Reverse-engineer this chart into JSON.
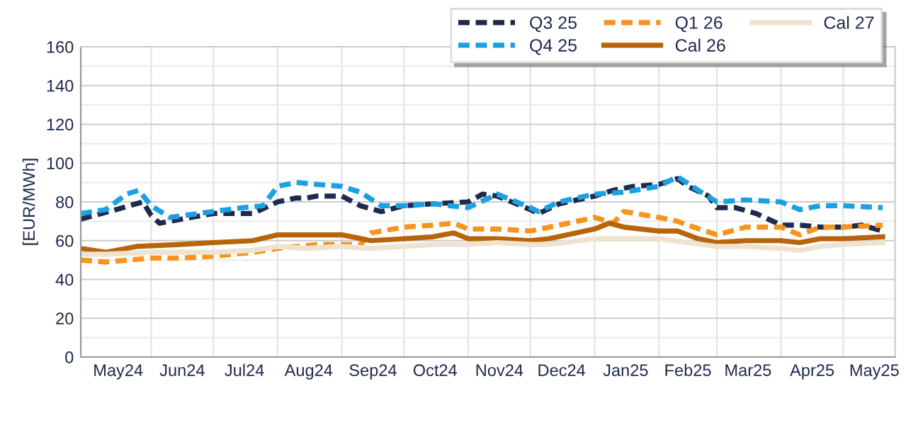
{
  "chart_data": {
    "type": "line",
    "ylabel": "[EUR/MWh]",
    "ylim": [
      0,
      160
    ],
    "yticks": [
      0,
      {
        "value": 10,
        "label": null
      },
      20,
      {
        "value": 30,
        "label": null
      },
      40,
      {
        "value": 50,
        "label": null
      },
      60,
      {
        "value": 70,
        "label": null
      },
      80,
      {
        "value": 90,
        "label": null
      },
      100,
      {
        "value": 110,
        "label": null
      },
      120,
      {
        "value": 130,
        "label": null
      },
      140,
      {
        "value": 150,
        "label": null
      },
      160
    ],
    "xlim": [
      "2024-04-28",
      "2025-05-26"
    ],
    "xticks": [
      {
        "value": "2024-05-16",
        "label": "May24"
      },
      {
        "value": "2024-06-01",
        "label": null
      },
      {
        "value": "2024-06-16",
        "label": "Jun24"
      },
      {
        "value": "2024-07-01",
        "label": null
      },
      {
        "value": "2024-07-16",
        "label": "Jul24"
      },
      {
        "value": "2024-08-01",
        "label": null
      },
      {
        "value": "2024-08-16",
        "label": "Aug24"
      },
      {
        "value": "2024-09-01",
        "label": null
      },
      {
        "value": "2024-09-16",
        "label": "Sep24"
      },
      {
        "value": "2024-10-01",
        "label": null
      },
      {
        "value": "2024-10-16",
        "label": "Oct24"
      },
      {
        "value": "2024-11-01",
        "label": null
      },
      {
        "value": "2024-11-16",
        "label": "Nov24"
      },
      {
        "value": "2024-12-01",
        "label": null
      },
      {
        "value": "2024-12-16",
        "label": "Dec24"
      },
      {
        "value": "2025-01-01",
        "label": null
      },
      {
        "value": "2025-01-16",
        "label": "Jan25"
      },
      {
        "value": "2025-02-01",
        "label": null
      },
      {
        "value": "2025-02-15",
        "label": "Feb25"
      },
      {
        "value": "2025-03-01",
        "label": null
      },
      {
        "value": "2025-03-16",
        "label": "Mar25"
      },
      {
        "value": "2025-04-01",
        "label": null
      },
      {
        "value": "2025-04-16",
        "label": "Apr25"
      },
      {
        "value": "2025-05-01",
        "label": null
      },
      {
        "value": "2025-05-16",
        "label": "May25"
      }
    ],
    "grid": true,
    "legend": "top right",
    "series": [
      {
        "name": "Q3 25",
        "color": "#1f2a4d",
        "line_style": "dashed",
        "x": [
          "2024-04-28",
          "2024-05-01",
          "2024-05-15",
          "2024-05-28",
          "2024-06-01",
          "2024-06-05",
          "2024-06-10",
          "2024-06-15",
          "2024-07-01",
          "2024-07-15",
          "2024-07-20",
          "2024-08-01",
          "2024-08-10",
          "2024-08-15",
          "2024-08-20",
          "2024-09-01",
          "2024-09-10",
          "2024-09-20",
          "2024-10-01",
          "2024-10-15",
          "2024-11-01",
          "2024-11-08",
          "2024-11-15",
          "2024-12-01",
          "2024-12-05",
          "2024-12-15",
          "2025-01-01",
          "2025-01-10",
          "2025-01-20",
          "2025-02-01",
          "2025-02-10",
          "2025-02-15",
          "2025-02-25",
          "2025-03-01",
          "2025-03-10",
          "2025-03-20",
          "2025-04-01",
          "2025-04-10",
          "2025-04-20",
          "2025-05-01",
          "2025-05-10",
          "2025-05-20"
        ],
        "values": [
          71,
          72,
          76,
          80,
          73,
          69,
          70,
          71,
          74,
          74,
          74,
          80,
          82,
          82,
          83,
          83,
          78,
          75,
          78,
          79,
          80,
          84,
          83,
          76,
          74,
          79,
          83,
          86,
          88,
          89,
          92,
          88,
          83,
          77,
          77,
          74,
          68,
          68,
          67,
          67,
          68,
          65
        ]
      },
      {
        "name": "Q4 25",
        "color": "#1ba1e2",
        "line_style": "dashed",
        "x": [
          "2024-04-28",
          "2024-05-10",
          "2024-05-20",
          "2024-05-26",
          "2024-06-01",
          "2024-06-10",
          "2024-07-01",
          "2024-07-15",
          "2024-07-25",
          "2024-08-01",
          "2024-08-10",
          "2024-08-20",
          "2024-09-01",
          "2024-09-10",
          "2024-09-20",
          "2024-10-01",
          "2024-10-15",
          "2024-11-01",
          "2024-11-15",
          "2024-12-01",
          "2024-12-05",
          "2024-12-15",
          "2025-01-01",
          "2025-01-15",
          "2025-02-01",
          "2025-02-10",
          "2025-02-20",
          "2025-03-01",
          "2025-03-15",
          "2025-04-01",
          "2025-04-10",
          "2025-04-20",
          "2025-05-01",
          "2025-05-20"
        ],
        "values": [
          74,
          76,
          84,
          86,
          78,
          72,
          75,
          77,
          78,
          88,
          90,
          89,
          88,
          85,
          78,
          78,
          79,
          77,
          84,
          77,
          75,
          80,
          84,
          85,
          88,
          93,
          86,
          80,
          81,
          80,
          76,
          78,
          78,
          77
        ]
      },
      {
        "name": "Q1 26",
        "color": "#f7941d",
        "line_style": "dashed",
        "x": [
          "2024-04-28",
          "2024-05-10",
          "2024-06-01",
          "2024-06-15",
          "2024-07-01",
          "2024-07-20",
          "2024-08-01",
          "2024-08-20",
          "2024-09-01",
          "2024-09-10",
          "2024-09-15",
          "2024-10-01",
          "2024-10-15",
          "2024-10-25",
          "2024-11-01",
          "2024-11-15",
          "2024-12-01",
          "2024-12-15",
          "2025-01-01",
          "2025-01-10",
          "2025-01-15",
          "2025-02-01",
          "2025-02-10",
          "2025-02-15",
          "2025-03-01",
          "2025-03-15",
          "2025-04-01",
          "2025-04-10",
          "2025-04-20",
          "2025-05-01",
          "2025-05-20"
        ],
        "values": [
          50,
          49,
          51,
          51,
          52,
          54,
          56,
          58,
          58,
          58,
          64,
          67,
          68,
          69,
          66,
          66,
          65,
          68,
          72,
          69,
          75,
          72,
          70,
          68,
          63,
          67,
          67,
          63,
          67,
          67,
          68
        ]
      },
      {
        "name": "Cal 26",
        "color": "#b8650a",
        "line_style": "solid",
        "x": [
          "2024-04-28",
          "2024-05-10",
          "2024-05-25",
          "2024-06-15",
          "2024-07-01",
          "2024-07-20",
          "2024-08-01",
          "2024-08-15",
          "2024-09-01",
          "2024-09-15",
          "2024-10-01",
          "2024-10-15",
          "2024-10-25",
          "2024-11-01",
          "2024-11-15",
          "2024-12-01",
          "2024-12-10",
          "2025-01-01",
          "2025-01-08",
          "2025-01-15",
          "2025-02-01",
          "2025-02-10",
          "2025-02-20",
          "2025-03-01",
          "2025-03-15",
          "2025-04-01",
          "2025-04-10",
          "2025-04-20",
          "2025-05-01",
          "2025-05-20"
        ],
        "values": [
          56,
          54,
          57,
          58,
          59,
          60,
          63,
          63,
          63,
          60,
          61,
          62,
          64,
          61,
          61,
          60,
          61,
          66,
          69,
          67,
          65,
          65,
          61,
          59,
          60,
          60,
          59,
          61,
          61,
          62
        ]
      },
      {
        "name": "Cal 27",
        "color": "#eee3d0",
        "line_style": "solid",
        "x": [
          "2024-04-28",
          "2024-05-10",
          "2024-06-01",
          "2024-07-01",
          "2024-07-20",
          "2024-08-01",
          "2024-08-15",
          "2024-09-01",
          "2024-09-15",
          "2024-10-01",
          "2024-10-15",
          "2024-11-01",
          "2024-11-15",
          "2024-12-01",
          "2024-12-10",
          "2025-01-01",
          "2025-01-15",
          "2025-02-01",
          "2025-02-15",
          "2025-03-01",
          "2025-03-15",
          "2025-04-01",
          "2025-04-10",
          "2025-04-20",
          "2025-05-01",
          "2025-05-20"
        ],
        "values": [
          53,
          53,
          54,
          54,
          55,
          57,
          56,
          57,
          56,
          57,
          58,
          58,
          59,
          58,
          58,
          61,
          61,
          61,
          59,
          57,
          57,
          56,
          55,
          57,
          58,
          59
        ]
      }
    ]
  }
}
